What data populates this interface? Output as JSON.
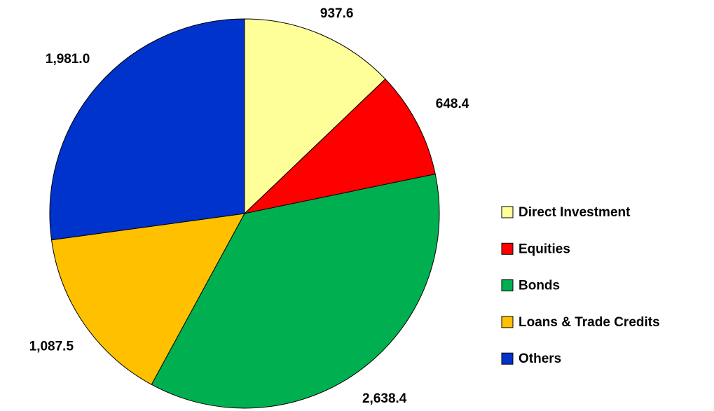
{
  "chart_data": {
    "type": "pie",
    "categories": [
      "Direct Investment",
      "Equities",
      "Bonds",
      "Loans & Trade Credits",
      "Others"
    ],
    "values": [
      937.6,
      648.4,
      2638.4,
      1087.5,
      1981.0
    ],
    "value_labels": [
      "937.6",
      "648.4",
      "2,638.4",
      "1,087.5",
      "1,981.0"
    ],
    "colors": [
      "#FFFF99",
      "#FF0000",
      "#00B050",
      "#FFC000",
      "#0033CC"
    ],
    "legend": "right"
  }
}
